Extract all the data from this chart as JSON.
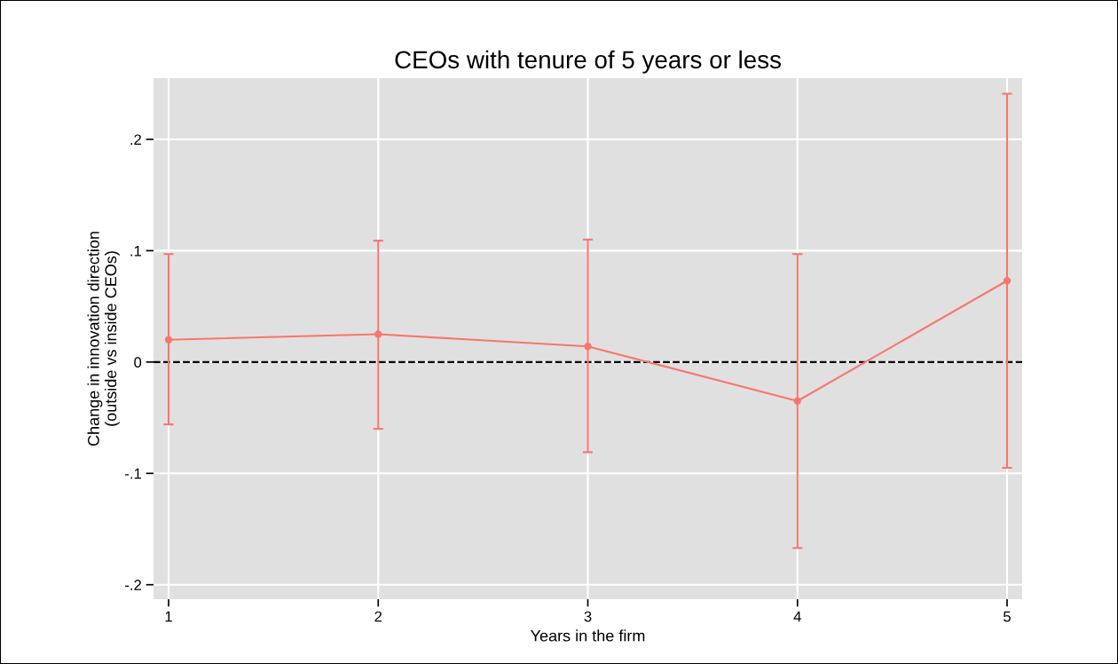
{
  "chart_data": {
    "type": "line",
    "title": "CEOs with tenure of 5 years or less",
    "xlabel": "Years in the firm",
    "ylabel": "Change in innovation direction\n(outside vs inside CEOs)",
    "x": [
      1,
      2,
      3,
      4,
      5
    ],
    "series": [
      {
        "color": "#f8766d",
        "values": [
          0.02,
          0.025,
          0.014,
          -0.035,
          0.073
        ],
        "errors": [
          [
            -0.056,
            0.097
          ],
          [
            -0.06,
            0.109
          ],
          [
            -0.081,
            0.11
          ],
          [
            -0.167,
            0.097
          ],
          [
            -0.095,
            0.241
          ]
        ]
      }
    ],
    "xlim": [
      0.928,
      5.072
    ],
    "ylim": [
      -0.213,
      0.255
    ],
    "xticks": [
      1,
      2,
      3,
      4,
      5
    ],
    "yticks": [
      {
        "value": -0.2,
        "label": "-.2"
      },
      {
        "value": -0.1,
        "label": "-.1"
      },
      {
        "value": 0,
        "label": "0"
      },
      {
        "value": 0.1,
        "label": ".1"
      },
      {
        "value": 0.2,
        "label": ".2"
      }
    ],
    "ref_lines": [
      {
        "axis": "y",
        "value": 0,
        "color": "#000000",
        "line_style": "dashed"
      }
    ],
    "grid": true,
    "marker": "circle",
    "line_style": "solid",
    "legend": false
  }
}
